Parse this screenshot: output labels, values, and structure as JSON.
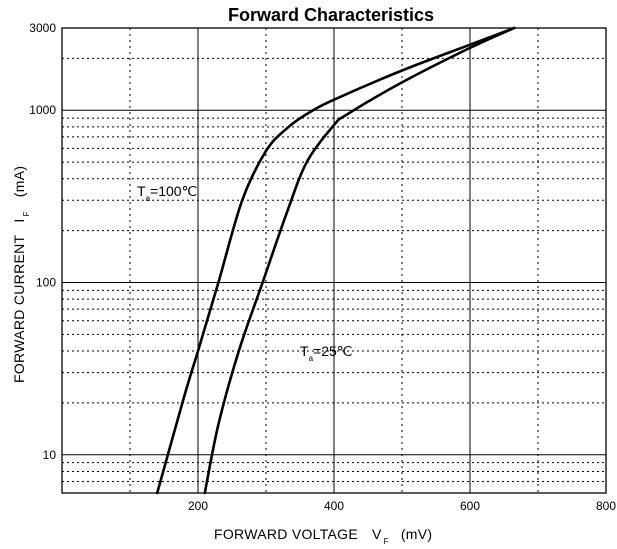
{
  "chart_data": {
    "type": "line",
    "title": "Forward Characteristics",
    "xlabel": {
      "prefix": "FORWARD VOLTAGE",
      "symbol": "V",
      "subscript": "F",
      "unit": "(mV)"
    },
    "ylabel": {
      "prefix": "FORWARD CURRENT",
      "symbol": "I",
      "subscript": "F",
      "unit": "(mA)"
    },
    "x_scale": "linear",
    "y_scale": "log",
    "xlim": [
      0,
      800
    ],
    "ylim": [
      6,
      3000
    ],
    "x_ticks": [
      200,
      400,
      600,
      800
    ],
    "y_ticks": [
      10,
      100,
      1000,
      3000
    ],
    "grid": true,
    "series": [
      {
        "label_symbol": "T",
        "label_subscript": "a",
        "label_value": "=100℃",
        "x": [
          140,
          180,
          200,
          230,
          265,
          300,
          330,
          360,
          400,
          500,
          600,
          665
        ],
        "y": [
          6,
          22,
          40,
          100,
          300,
          580,
          780,
          950,
          1150,
          1700,
          2400,
          3000
        ]
      },
      {
        "label_symbol": "T",
        "label_subscript": "a",
        "label_value": "=25℃",
        "x": [
          210,
          230,
          260,
          295,
          330,
          360,
          400,
          420,
          500,
          600,
          665
        ],
        "y": [
          6,
          15,
          40,
          100,
          250,
          500,
          820,
          950,
          1450,
          2300,
          3000
        ]
      }
    ],
    "colors": {
      "curve": "#000000",
      "grid": "#000000",
      "background": "#ffffff"
    }
  }
}
